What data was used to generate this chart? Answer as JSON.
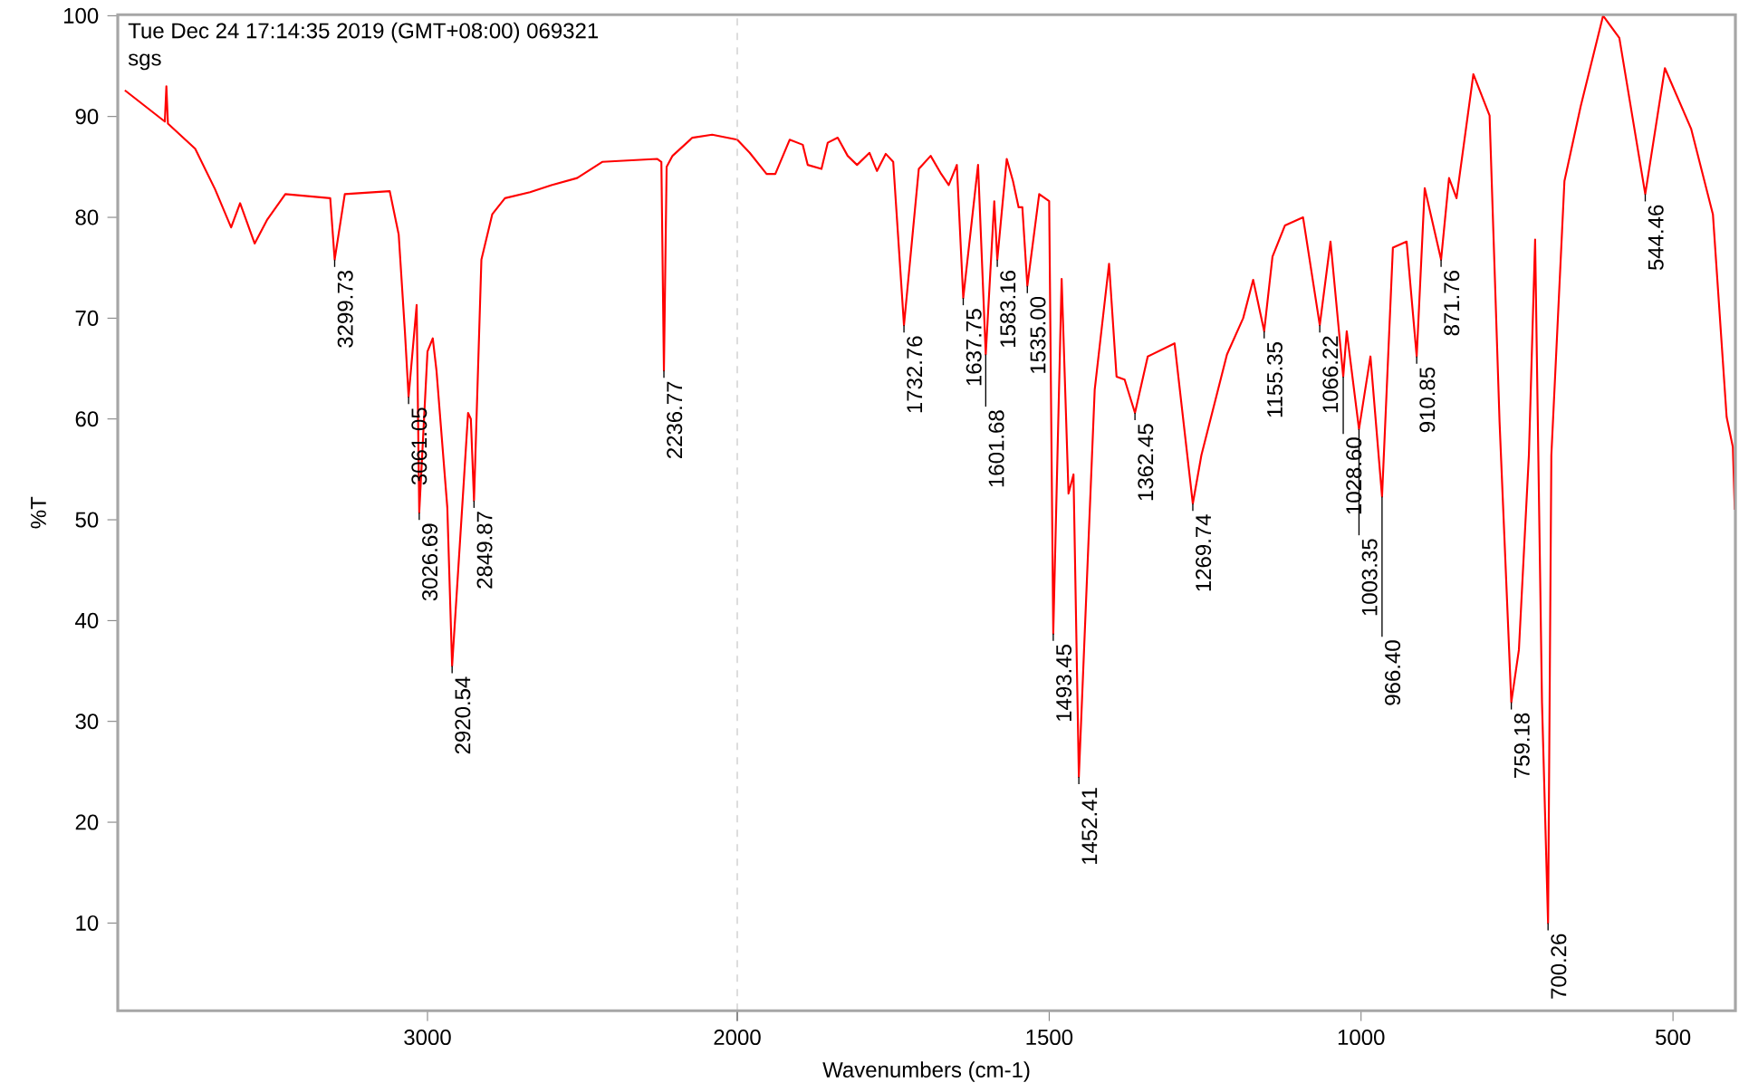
{
  "chart_data": [
    {
      "type": "line",
      "ylabel": "%T",
      "xlim": [
        4000,
        2000
      ],
      "ylim": [
        1.3,
        100.1
      ],
      "xticks": [
        3000,
        2000
      ],
      "yticks": [
        10,
        20,
        30,
        40,
        50,
        60,
        70,
        80,
        90,
        100
      ],
      "x": [
        3977,
        3848,
        3843,
        3838,
        3750,
        3686,
        3634,
        3605,
        3558,
        3517,
        3459,
        3314,
        3299.73,
        3267,
        3122,
        3093,
        3073,
        3061.05,
        3035,
        3026.69,
        3000,
        2983,
        2971,
        2936,
        2920.54,
        2884,
        2869,
        2860,
        2849.87,
        2826,
        2791,
        2750,
        2669,
        2600,
        2517,
        2436,
        2259,
        2245,
        2236.77,
        2228,
        2209,
        2145,
        2081,
        2000
      ],
      "series": [
        {
          "color": "#ff0000",
          "values": [
            92.6,
            89.5,
            93.0,
            89.3,
            86.8,
            82.8,
            79.0,
            81.4,
            77.4,
            79.8,
            82.3,
            81.9,
            75.8,
            82.3,
            82.6,
            78.3,
            68.7,
            62.2,
            71.3,
            50.7,
            66.7,
            68.0,
            64.8,
            51.2,
            35.5,
            53.2,
            60.6,
            60.0,
            51.9,
            75.8,
            80.3,
            81.9,
            82.5,
            83.2,
            83.9,
            85.5,
            85.8,
            85.5,
            64.8,
            85.0,
            86.1,
            87.9,
            88.2,
            87.7
          ]
        }
      ],
      "annotations": [
        "Tue Dec 24 17:14:35 2019 (GMT+08:00) 069321",
        "sgs",
        {
          "text": "3299.73",
          "x": 3299.73,
          "y": 75.8
        },
        {
          "text": "3061.05",
          "x": 3061.05,
          "y": 62.2
        },
        {
          "text": "3026.69",
          "x": 3026.69,
          "y": 50.7
        },
        {
          "text": "2920.54",
          "x": 2920.54,
          "y": 35.5
        },
        {
          "text": "2849.87",
          "x": 2849.87,
          "y": 51.9
        },
        {
          "text": "2236.77",
          "x": 2236.77,
          "y": 64.8
        }
      ]
    },
    {
      "type": "line",
      "xlabel": "Wavenumbers (cm-1)",
      "tick_labels": "x",
      "xlim": [
        2000,
        400
      ],
      "ylim": [
        1.3,
        100.1
      ],
      "xticks": [
        {
          "value": 2000,
          "label": null
        },
        1500,
        1000,
        500
      ],
      "ref_lines": [
        {
          "axis": "x",
          "value": 2000,
          "color": "#c0c0c0",
          "line_style": "dashed"
        }
      ],
      "x": [
        2000,
        1980,
        1953,
        1939,
        1916,
        1895,
        1887,
        1865,
        1855,
        1839,
        1823,
        1808,
        1788,
        1776,
        1762,
        1750,
        1732.76,
        1709,
        1690,
        1673,
        1661,
        1648,
        1637.75,
        1614,
        1601.68,
        1588,
        1583.16,
        1568,
        1558,
        1549,
        1543,
        1535.0,
        1516,
        1500,
        1493.45,
        1480,
        1469,
        1461,
        1452.41,
        1427,
        1404,
        1392,
        1379,
        1362.45,
        1342,
        1299,
        1269.74,
        1256,
        1215,
        1189,
        1173,
        1155.35,
        1142,
        1122,
        1093,
        1066.22,
        1049,
        1028.6,
        1023,
        1003.35,
        985,
        966.4,
        949,
        927,
        910.85,
        898,
        871.76,
        859,
        847,
        820,
        794,
        778,
        759.18,
        747,
        731,
        721,
        710,
        700.26,
        695,
        674,
        648,
        612,
        586,
        544.46,
        513,
        471,
        436,
        414,
        404,
        401
      ],
      "series": [
        {
          "color": "#ff0000",
          "values": [
            87.7,
            86.4,
            84.3,
            84.3,
            87.7,
            87.2,
            85.2,
            84.8,
            87.4,
            87.9,
            86.1,
            85.2,
            86.4,
            84.6,
            86.3,
            85.5,
            69.3,
            84.8,
            86.1,
            84.3,
            83.2,
            85.2,
            72.0,
            85.2,
            66.4,
            81.6,
            75.8,
            85.8,
            83.6,
            81.0,
            81.0,
            73.2,
            82.3,
            81.6,
            38.7,
            73.9,
            52.6,
            54.5,
            24.5,
            62.9,
            75.4,
            64.2,
            63.9,
            60.6,
            66.2,
            67.5,
            51.6,
            56.4,
            66.4,
            70.0,
            73.8,
            68.7,
            76.1,
            79.2,
            80.0,
            69.3,
            77.6,
            64.2,
            68.7,
            59.0,
            66.2,
            52.3,
            77.0,
            77.6,
            66.2,
            82.9,
            75.8,
            83.9,
            81.9,
            94.2,
            90.1,
            59.7,
            31.9,
            37.1,
            56.4,
            77.8,
            31.9,
            10.0,
            56.4,
            83.6,
            91.0,
            100.0,
            97.8,
            82.3,
            94.8,
            88.8,
            80.3,
            60.2,
            57.2,
            51.0
          ]
        }
      ],
      "annotations": [
        {
          "text": "1732.76",
          "x": 1732.76,
          "y": 69.3
        },
        {
          "text": "1637.75",
          "x": 1637.75,
          "y": 72.0
        },
        {
          "text": "1601.68",
          "x": 1601.68,
          "y": 66.4
        },
        {
          "text": "1583.16",
          "x": 1583.16,
          "y": 75.8
        },
        {
          "text": "1535.00",
          "x": 1535.0,
          "y": 73.2
        },
        {
          "text": "1493.45",
          "x": 1493.45,
          "y": 38.7
        },
        {
          "text": "1452.41",
          "x": 1452.41,
          "y": 24.5
        },
        {
          "text": "1362.45",
          "x": 1362.45,
          "y": 60.6
        },
        {
          "text": "1269.74",
          "x": 1269.74,
          "y": 51.6
        },
        {
          "text": "1155.35",
          "x": 1155.35,
          "y": 68.7
        },
        {
          "text": "1066.22",
          "x": 1066.22,
          "y": 69.3
        },
        {
          "text": "1028.60",
          "x": 1028.6,
          "y": 64.2
        },
        {
          "text": "1003.35",
          "x": 1003.35,
          "y": 59.0
        },
        {
          "text": "966.40",
          "x": 966.4,
          "y": 52.3
        },
        {
          "text": "910.85",
          "x": 910.85,
          "y": 66.2
        },
        {
          "text": "871.76",
          "x": 871.76,
          "y": 75.8
        },
        {
          "text": "759.18",
          "x": 759.18,
          "y": 31.9
        },
        {
          "text": "700.26",
          "x": 700.26,
          "y": 10.0
        },
        {
          "text": "544.46",
          "x": 544.46,
          "y": 82.3
        }
      ]
    }
  ]
}
